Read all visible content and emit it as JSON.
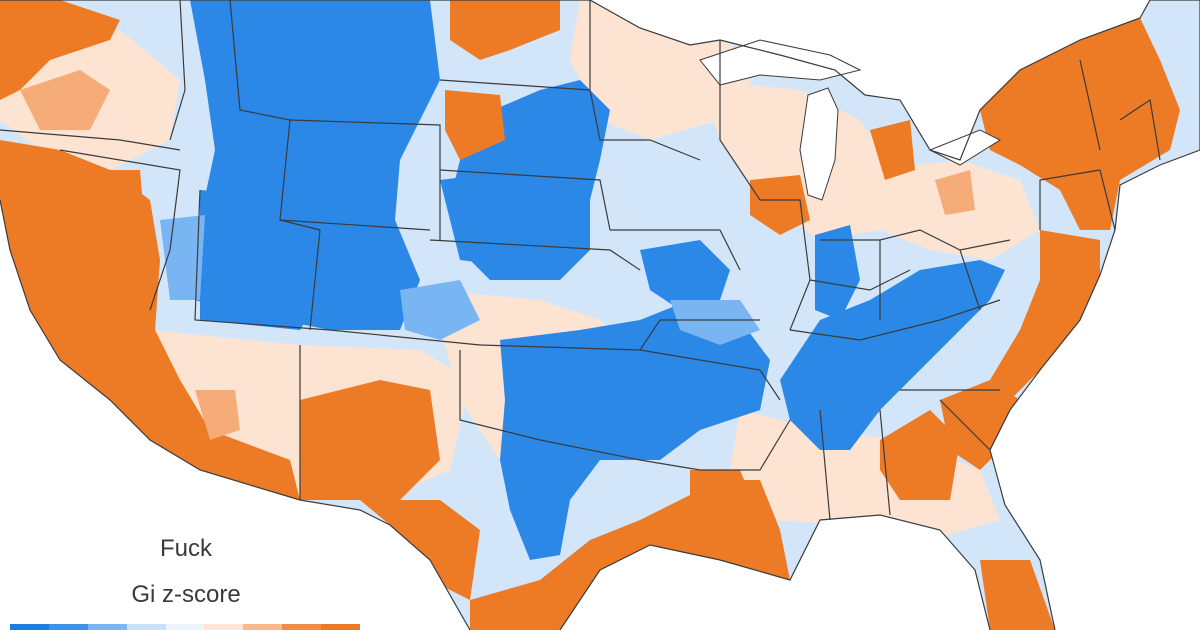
{
  "legend": {
    "title": "Fuck",
    "subtitle": "Gi z-score",
    "scale_colors": [
      "#1d7fe0",
      "#3d93ea",
      "#7cb6f2",
      "#c9e0f8",
      "#eef4fb",
      "#fde6d8",
      "#f9b98c",
      "#f08c47",
      "#ec7a24"
    ]
  },
  "colors": {
    "strong_blue": "#2b88e6",
    "mid_blue": "#78b5f2",
    "light_blue": "#d3e6f9",
    "pale_orange": "#fde3d2",
    "mid_orange": "#f6ac78",
    "strong_orange": "#ed7a25",
    "border": "#3b3b3b",
    "background": "#ffffff"
  }
}
